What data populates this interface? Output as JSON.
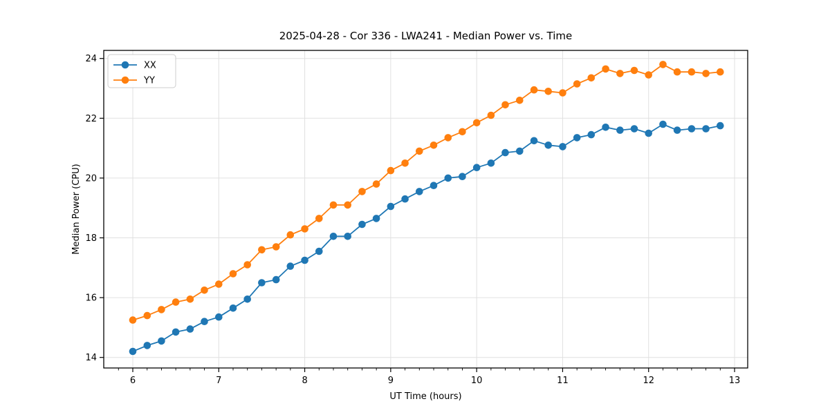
{
  "figure": {
    "title": "2025-04-28 - Cor 336 - LWA241 - Median Power vs. Time"
  },
  "chart_data": {
    "type": "line",
    "title": "2025-04-28 - Cor 336 - LWA241 - Median Power vs. Time",
    "xlabel": "UT Time (hours)",
    "ylabel": "Median Power (CPU)",
    "x": [
      6.0,
      6.167,
      6.333,
      6.5,
      6.667,
      6.833,
      7.0,
      7.167,
      7.333,
      7.5,
      7.667,
      7.833,
      8.0,
      8.167,
      8.333,
      8.5,
      8.667,
      8.833,
      9.0,
      9.167,
      9.333,
      9.5,
      9.667,
      9.833,
      10.0,
      10.167,
      10.333,
      10.5,
      10.667,
      10.833,
      11.0,
      11.167,
      11.333,
      11.5,
      11.667,
      11.833,
      12.0,
      12.167,
      12.333,
      12.5,
      12.667,
      12.833
    ],
    "series": [
      {
        "name": "XX",
        "color": "#1f77b4",
        "values": [
          14.2,
          14.4,
          14.55,
          14.85,
          14.95,
          15.2,
          15.35,
          15.65,
          15.95,
          16.5,
          16.6,
          17.05,
          17.25,
          17.55,
          18.05,
          18.05,
          18.45,
          18.65,
          19.05,
          19.3,
          19.55,
          19.75,
          20.0,
          20.05,
          20.35,
          20.5,
          20.85,
          20.9,
          21.25,
          21.1,
          21.05,
          21.35,
          21.45,
          21.7,
          21.6,
          21.65,
          21.5,
          21.8,
          21.6,
          21.65,
          21.65,
          21.75
        ]
      },
      {
        "name": "YY",
        "color": "#ff7f0e",
        "values": [
          15.25,
          15.4,
          15.6,
          15.85,
          15.95,
          16.25,
          16.45,
          16.8,
          17.1,
          17.6,
          17.7,
          18.1,
          18.3,
          18.65,
          19.1,
          19.1,
          19.55,
          19.8,
          20.25,
          20.5,
          20.9,
          21.1,
          21.35,
          21.55,
          21.85,
          22.1,
          22.45,
          22.6,
          22.95,
          22.9,
          22.85,
          23.15,
          23.35,
          23.65,
          23.5,
          23.6,
          23.45,
          23.8,
          23.55,
          23.55,
          23.5,
          23.55
        ]
      }
    ],
    "x_ticks": [
      6,
      7,
      8,
      9,
      10,
      11,
      12,
      13
    ],
    "y_ticks": [
      14,
      16,
      18,
      20,
      22,
      24
    ],
    "xlim": [
      5.66,
      13.15
    ],
    "ylim": [
      13.65,
      24.27
    ],
    "grid": true,
    "legend_position": "upper left",
    "marker": "circle",
    "colors": {
      "grid": "#e0e0e0",
      "spine": "#000000",
      "legend_border": "#cccccc"
    }
  }
}
